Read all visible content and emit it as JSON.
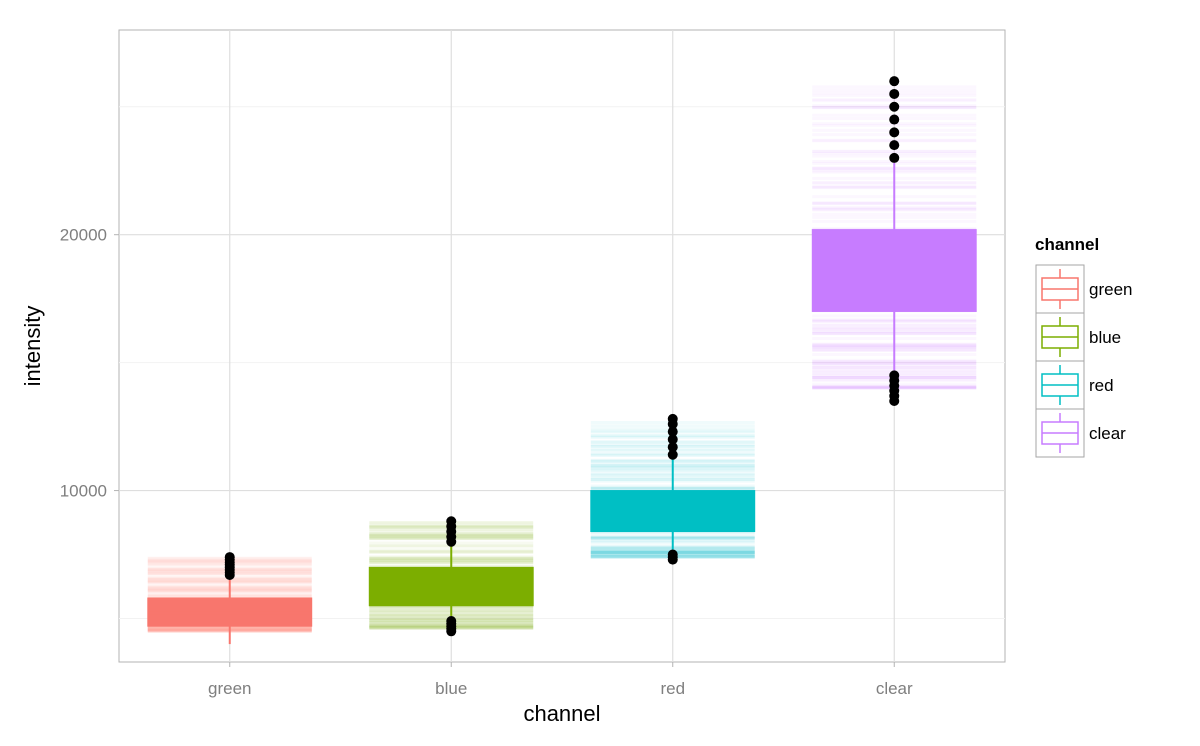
{
  "chart_data": {
    "type": "boxplot",
    "xlabel": "channel",
    "ylabel": "intensity",
    "ylim": [
      3300,
      28000
    ],
    "y_ticks": [
      10000,
      20000
    ],
    "y_tick_labels": [
      "10000",
      "20000"
    ],
    "grid": true,
    "categories": [
      "green",
      "blue",
      "red",
      "clear"
    ],
    "legend": {
      "title": "channel",
      "placement": "right",
      "entries": [
        "green",
        "blue",
        "red",
        "clear"
      ]
    },
    "series": [
      {
        "category": "green",
        "color": "#F8766D",
        "q1": 4700,
        "median": 5200,
        "q3": 5800,
        "whisker_low": 4000,
        "whisker_high": 6600,
        "jitter_range": [
          4500,
          7400
        ],
        "outliers": [
          6700,
          6800,
          6900,
          7000,
          7100,
          7200,
          7300,
          7400
        ]
      },
      {
        "category": "blue",
        "color": "#7CAE00",
        "q1": 5500,
        "median": 6300,
        "q3": 7000,
        "whisker_low": 5100,
        "whisker_high": 7900,
        "jitter_range": [
          4600,
          8800
        ],
        "outliers": [
          4500,
          4600,
          4700,
          4800,
          4900,
          8000,
          8200,
          8400,
          8600,
          8800
        ]
      },
      {
        "category": "red",
        "color": "#00BFC4",
        "q1": 8400,
        "median": 9200,
        "q3": 10000,
        "whisker_low": 7700,
        "whisker_high": 11300,
        "jitter_range": [
          7400,
          12700
        ],
        "outliers": [
          7300,
          7400,
          7500,
          11400,
          11700,
          12000,
          12300,
          12600,
          12800
        ]
      },
      {
        "category": "clear",
        "color": "#C77CFF",
        "q1": 17000,
        "median": 18500,
        "q3": 20200,
        "whisker_low": 14700,
        "whisker_high": 22800,
        "jitter_range": [
          14000,
          25800
        ],
        "outliers": [
          13500,
          13700,
          13900,
          14100,
          14300,
          14500,
          23000,
          23500,
          24000,
          24500,
          25000,
          25500,
          26000
        ]
      }
    ]
  }
}
